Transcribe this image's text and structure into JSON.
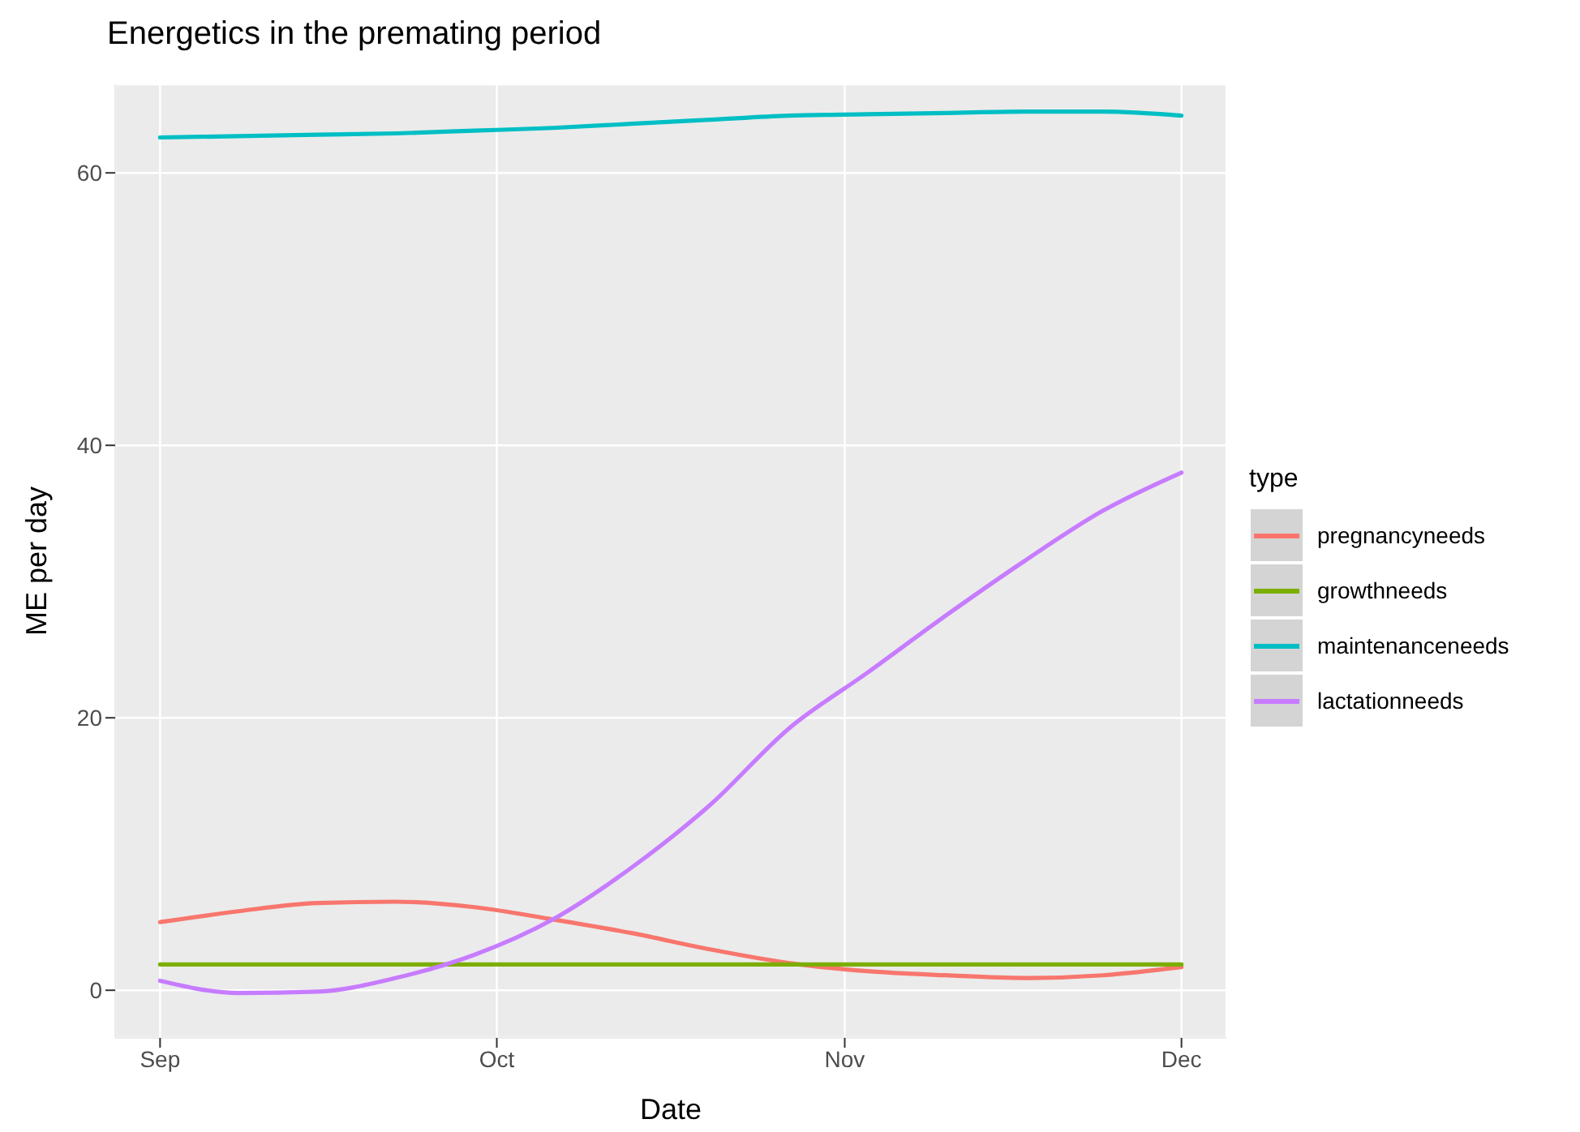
{
  "chart_data": {
    "type": "line",
    "title": "Energetics in the premating period",
    "xlabel": "Date",
    "ylabel": "ME per day",
    "legend_title": "type",
    "legend": "right",
    "grid": true,
    "x": [
      "--09-01",
      "--09-08",
      "--09-15",
      "--09-22",
      "--09-29",
      "--10-06",
      "--10-13",
      "--10-20",
      "--10-27",
      "--11-03",
      "--11-10",
      "--11-17",
      "--11-24",
      "--12-01"
    ],
    "xlim": [
      "--08-28",
      "--12-05"
    ],
    "xticks": [
      {
        "value": "--09-01",
        "label": "Sep"
      },
      {
        "value": "--10-01",
        "label": "Oct"
      },
      {
        "value": "--11-01",
        "label": "Nov"
      },
      {
        "value": "--12-01",
        "label": "Dec"
      }
    ],
    "ylim": [
      -3.5,
      66.5
    ],
    "yticks": [
      0,
      20,
      40,
      60
    ],
    "series": [
      {
        "name": "pregnancyneeds",
        "color": "#f8766d",
        "values": [
          5.0,
          5.8,
          6.4,
          6.5,
          6.1,
          5.2,
          4.2,
          3.0,
          2.0,
          1.4,
          1.1,
          0.9,
          1.1,
          1.7
        ]
      },
      {
        "name": "growthneeds",
        "color": "#7cae00",
        "values": [
          1.9,
          1.9,
          1.9,
          1.9,
          1.9,
          1.9,
          1.9,
          1.9,
          1.9,
          1.9,
          1.9,
          1.9,
          1.9,
          1.9
        ]
      },
      {
        "name": "maintenanceneeds",
        "color": "#00bfc4",
        "values": [
          62.6,
          62.7,
          62.8,
          62.9,
          63.1,
          63.3,
          63.6,
          63.9,
          64.2,
          64.3,
          64.4,
          64.5,
          64.5,
          64.2
        ]
      },
      {
        "name": "lactationneeds",
        "color": "#c77cff",
        "values": [
          0.7,
          -0.2,
          -0.1,
          0.9,
          2.6,
          5.2,
          9.0,
          13.6,
          19.2,
          23.3,
          27.5,
          31.5,
          35.2,
          38.0
        ]
      }
    ]
  }
}
